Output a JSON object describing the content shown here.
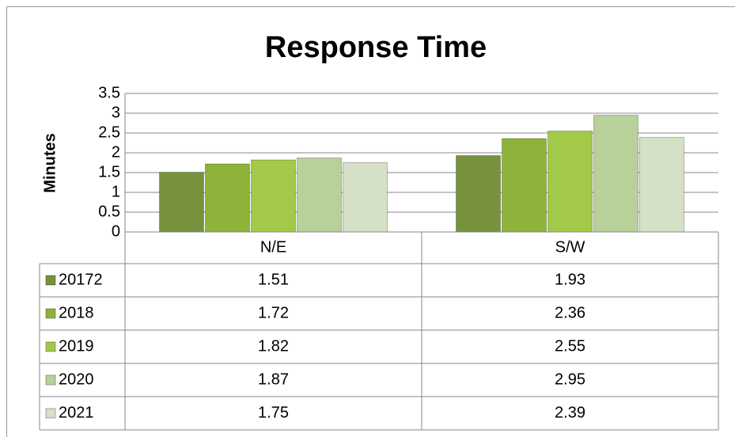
{
  "chart_data": {
    "type": "bar",
    "title": "Response Time",
    "y_label": "Minutes",
    "categories": [
      "N/E",
      "S/W"
    ],
    "series": [
      {
        "name": "20172",
        "color": "#76923c",
        "values": [
          1.51,
          1.93
        ]
      },
      {
        "name": "2018",
        "color": "#8db33a",
        "values": [
          1.72,
          2.36
        ]
      },
      {
        "name": "2019",
        "color": "#a3c94a",
        "values": [
          1.82,
          2.55
        ]
      },
      {
        "name": "2020",
        "color": "#b8d09a",
        "values": [
          1.87,
          2.95
        ]
      },
      {
        "name": "2021",
        "color": "#d5e1c6",
        "values": [
          1.75,
          2.39
        ]
      }
    ],
    "ylim": [
      0,
      3.5
    ],
    "yticks": [
      0,
      0.5,
      1,
      1.5,
      2,
      2.5,
      3,
      3.5
    ],
    "grid": true,
    "data_table": true
  }
}
